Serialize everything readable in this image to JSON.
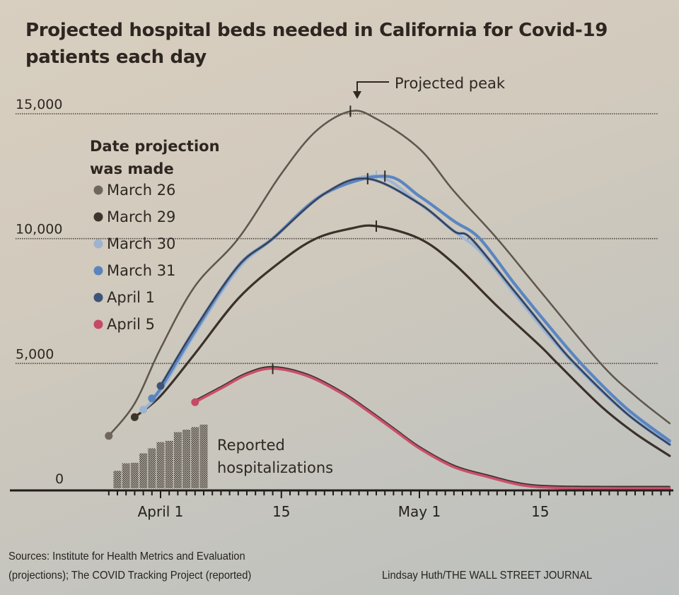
{
  "title_line1": "Projected hospital beds needed in California for Covid-19",
  "title_line2": "patients each day",
  "footer": {
    "sources_line1": "Sources: Institute for Health Metrics and Evaluation",
    "sources_line2": "(projections); The COVID Tracking Project (reported)",
    "credit": "Lindsay Huth/THE WALL STREET JOURNAL"
  },
  "chart_data": {
    "type": "line",
    "title": "Projected hospital beds needed in California for Covid-19 patients each day",
    "xlabel": "",
    "ylabel": "",
    "year": 2020,
    "xlim": [
      "2020-03-14",
      "2020-05-31"
    ],
    "ylim": [
      0,
      15000
    ],
    "y_ticks": [
      {
        "value": 0,
        "label": "0"
      },
      {
        "value": 5000,
        "label": "5,000"
      },
      {
        "value": 10000,
        "label": "10,000"
      },
      {
        "value": 15000,
        "label": "15,000"
      }
    ],
    "x_ticks": [
      {
        "date": "2020-04-01",
        "label": "April 1"
      },
      {
        "date": "2020-04-15",
        "label": "15"
      },
      {
        "date": "2020-05-01",
        "label": "May 1"
      },
      {
        "date": "2020-05-15",
        "label": "15"
      }
    ],
    "grid": "horizontal dotted at 5,000 / 10,000 / 15,000",
    "legend": {
      "title_line1": "Date projection",
      "title_line2": "was made",
      "placement": "left"
    },
    "series": [
      {
        "name": "March 26",
        "color": "#6f675e",
        "style": "hatched-light",
        "peak": {
          "date": "2020-04-23",
          "value": 15100
        },
        "points": [
          [
            "2020-03-26",
            2100
          ],
          [
            "2020-03-29",
            3400
          ],
          [
            "2020-04-01",
            5600
          ],
          [
            "2020-04-05",
            8100
          ],
          [
            "2020-04-10",
            10000
          ],
          [
            "2020-04-15",
            12600
          ],
          [
            "2020-04-19",
            14300
          ],
          [
            "2020-04-23",
            15100
          ],
          [
            "2020-04-26",
            14800
          ],
          [
            "2020-05-01",
            13600
          ],
          [
            "2020-05-05",
            11900
          ],
          [
            "2020-05-10",
            10000
          ],
          [
            "2020-05-15",
            7900
          ],
          [
            "2020-05-22",
            5000
          ],
          [
            "2020-05-26",
            3700
          ],
          [
            "2020-05-30",
            2600
          ]
        ]
      },
      {
        "name": "March 29",
        "color": "#3d342d",
        "style": "dark",
        "peak": {
          "date": "2020-04-26",
          "value": 10500
        },
        "points": [
          [
            "2020-03-29",
            2850
          ],
          [
            "2020-04-01",
            3700
          ],
          [
            "2020-04-05",
            5400
          ],
          [
            "2020-04-10",
            7600
          ],
          [
            "2020-04-15",
            9100
          ],
          [
            "2020-04-19",
            10000
          ],
          [
            "2020-04-23",
            10400
          ],
          [
            "2020-04-26",
            10500
          ],
          [
            "2020-05-01",
            10000
          ],
          [
            "2020-05-05",
            9000
          ],
          [
            "2020-05-10",
            7300
          ],
          [
            "2020-05-15",
            5700
          ],
          [
            "2020-05-17",
            5000
          ],
          [
            "2020-05-22",
            3300
          ],
          [
            "2020-05-26",
            2200
          ],
          [
            "2020-05-30",
            1300
          ]
        ]
      },
      {
        "name": "March 30",
        "color": "#9db3cf",
        "style": "light-blue",
        "peak": {
          "date": "2020-04-26",
          "value": 12500
        },
        "points": [
          [
            "2020-03-30",
            3150
          ],
          [
            "2020-04-01",
            3900
          ],
          [
            "2020-04-05",
            6200
          ],
          [
            "2020-04-10",
            8800
          ],
          [
            "2020-04-14",
            10000
          ],
          [
            "2020-04-20",
            11800
          ],
          [
            "2020-04-26",
            12500
          ],
          [
            "2020-05-01",
            11400
          ],
          [
            "2020-05-05",
            10300
          ],
          [
            "2020-05-08",
            9500
          ],
          [
            "2020-05-12",
            7800
          ],
          [
            "2020-05-16",
            6100
          ],
          [
            "2020-05-20",
            4600
          ],
          [
            "2020-05-25",
            3000
          ],
          [
            "2020-05-30",
            1800
          ]
        ]
      },
      {
        "name": "March 31",
        "color": "#5b84bd",
        "style": "blue",
        "peak": {
          "date": "2020-04-27",
          "value": 12500
        },
        "points": [
          [
            "2020-03-31",
            3600
          ],
          [
            "2020-04-01",
            4000
          ],
          [
            "2020-04-05",
            6300
          ],
          [
            "2020-04-10",
            8900
          ],
          [
            "2020-04-14",
            10000
          ],
          [
            "2020-04-20",
            11800
          ],
          [
            "2020-04-27",
            12500
          ],
          [
            "2020-05-01",
            11700
          ],
          [
            "2020-05-05",
            10700
          ],
          [
            "2020-05-08",
            10000
          ],
          [
            "2020-05-12",
            8200
          ],
          [
            "2020-05-16",
            6500
          ],
          [
            "2020-05-20",
            4900
          ],
          [
            "2020-05-25",
            3200
          ],
          [
            "2020-05-30",
            1900
          ]
        ]
      },
      {
        "name": "April 1",
        "color": "#3e5478",
        "style": "dark-blue",
        "peak": {
          "date": "2020-04-25",
          "value": 12400
        },
        "points": [
          [
            "2020-04-01",
            4100
          ],
          [
            "2020-04-05",
            6400
          ],
          [
            "2020-04-10",
            8900
          ],
          [
            "2020-04-14",
            10000
          ],
          [
            "2020-04-20",
            11800
          ],
          [
            "2020-04-25",
            12400
          ],
          [
            "2020-05-01",
            11400
          ],
          [
            "2020-05-05",
            10300
          ],
          [
            "2020-05-07",
            10000
          ],
          [
            "2020-05-12",
            7900
          ],
          [
            "2020-05-16",
            6200
          ],
          [
            "2020-05-19",
            5000
          ],
          [
            "2020-05-25",
            3000
          ],
          [
            "2020-05-30",
            1750
          ]
        ]
      },
      {
        "name": "April 5",
        "color": "#c44a66",
        "style": "red",
        "peak": {
          "date": "2020-04-14",
          "value": 4800
        },
        "points": [
          [
            "2020-04-05",
            3450
          ],
          [
            "2020-04-08",
            4000
          ],
          [
            "2020-04-11",
            4550
          ],
          [
            "2020-04-14",
            4800
          ],
          [
            "2020-04-18",
            4500
          ],
          [
            "2020-04-22",
            3800
          ],
          [
            "2020-04-25",
            3100
          ],
          [
            "2020-04-28",
            2350
          ],
          [
            "2020-05-01",
            1600
          ],
          [
            "2020-05-05",
            850
          ],
          [
            "2020-05-09",
            450
          ],
          [
            "2020-05-13",
            120
          ],
          [
            "2020-05-17",
            20
          ],
          [
            "2020-05-24",
            0
          ],
          [
            "2020-05-30",
            0
          ]
        ]
      }
    ],
    "bars": {
      "name": "Reported hospitalizations",
      "label_line1": "Reported",
      "label_line2": "hospitalizations",
      "color": "#4a4540",
      "points": [
        [
          "2020-03-27",
          700
        ],
        [
          "2020-03-28",
          1000
        ],
        [
          "2020-03-29",
          1020
        ],
        [
          "2020-03-30",
          1400
        ],
        [
          "2020-03-31",
          1600
        ],
        [
          "2020-04-01",
          1850
        ],
        [
          "2020-04-02",
          1900
        ],
        [
          "2020-04-03",
          2250
        ],
        [
          "2020-04-04",
          2350
        ],
        [
          "2020-04-05",
          2450
        ],
        [
          "2020-04-06",
          2550
        ]
      ]
    },
    "annotations": [
      {
        "text": "Projected peak",
        "target_series": "March 26"
      }
    ]
  }
}
